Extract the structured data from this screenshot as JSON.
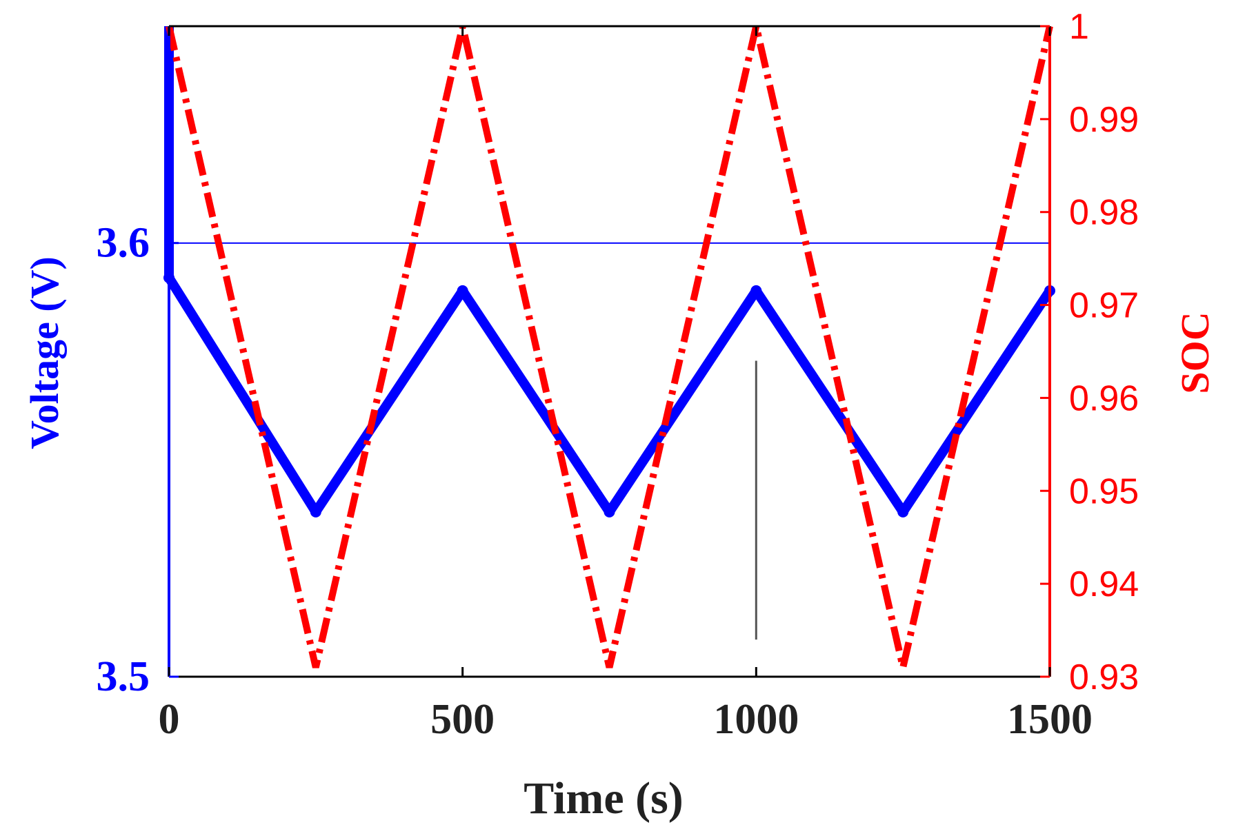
{
  "chart_data": {
    "type": "line",
    "xlabel": "Time (s)",
    "ylabel_left": "Voltage (V)",
    "ylabel_right": "SOC",
    "xlim": [
      0,
      1500
    ],
    "ylim_left": [
      3.5,
      3.65
    ],
    "ylim_right": [
      0.93,
      1.0
    ],
    "x_ticks": [
      0,
      500,
      1000,
      1500
    ],
    "y_ticks_left": [
      3.5,
      3.6
    ],
    "y_ticks_left_labels": [
      "3.5",
      "3.6"
    ],
    "y_ticks_right": [
      0.93,
      0.94,
      0.95,
      0.96,
      0.97,
      0.98,
      0.99,
      1.0
    ],
    "y_ticks_right_labels": [
      "0.93",
      "0.94",
      "0.95",
      "0.96",
      "0.97",
      "0.98",
      "0.99",
      "1"
    ],
    "series": [
      {
        "axis": "left",
        "style": "thick solid with markers",
        "color": "#0000ff",
        "x": [
          0,
          0,
          250,
          500,
          750,
          1000,
          1250,
          1500
        ],
        "y": [
          3.65,
          3.592,
          3.538,
          3.589,
          3.538,
          3.589,
          3.538,
          3.589
        ]
      },
      {
        "axis": "left",
        "style": "thin horizontal reference",
        "color": "#0000ff",
        "x": [
          0,
          1500
        ],
        "y": [
          3.6,
          3.6
        ]
      },
      {
        "axis": "right",
        "style": "thick dash-dot",
        "color": "#ff0000",
        "x": [
          0,
          250,
          500,
          750,
          1000,
          1250,
          1500
        ],
        "y": [
          1.0,
          0.931,
          1.0,
          0.931,
          1.0,
          0.931,
          1.0
        ]
      },
      {
        "axis": "right",
        "style": "thin vertical marker",
        "color": "#555555",
        "x": [
          1000,
          1000
        ],
        "y": [
          0.934,
          0.964
        ]
      }
    ],
    "colors": {
      "voltage": "#0000ff",
      "soc": "#ff0000",
      "frame": "#000000",
      "tick_text": "#222222"
    }
  }
}
